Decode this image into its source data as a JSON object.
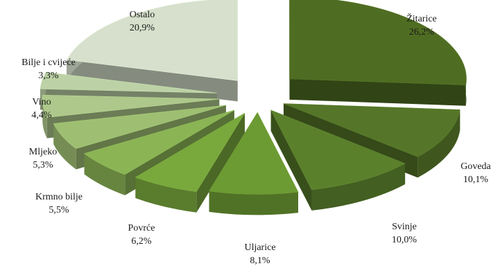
{
  "chart_data": {
    "type": "pie",
    "style": "3d-exploded",
    "categories": [
      "Žitarice",
      "Goveda",
      "Svinje",
      "Uljarice",
      "Povrće",
      "Krmno bilje",
      "Mljeko",
      "Vino",
      "Bilje i cvijeće",
      "Ostalo"
    ],
    "values": [
      26.2,
      10.1,
      10.0,
      8.1,
      6.2,
      5.5,
      5.3,
      4.4,
      3.3,
      20.9
    ],
    "value_labels": [
      "26,2%",
      "10,1%",
      "10,0%",
      "8,1%",
      "6,2%",
      "5,5%",
      "5,3%",
      "4,4%",
      "3,3%",
      "20,9%"
    ],
    "colors": [
      "#4f6d22",
      "#557628",
      "#5b802c",
      "#6c9a33",
      "#79a83d",
      "#8bb455",
      "#9ebf72",
      "#adc88a",
      "#bcd2a6",
      "#d6e0cc"
    ],
    "title": "",
    "legend": "none"
  }
}
